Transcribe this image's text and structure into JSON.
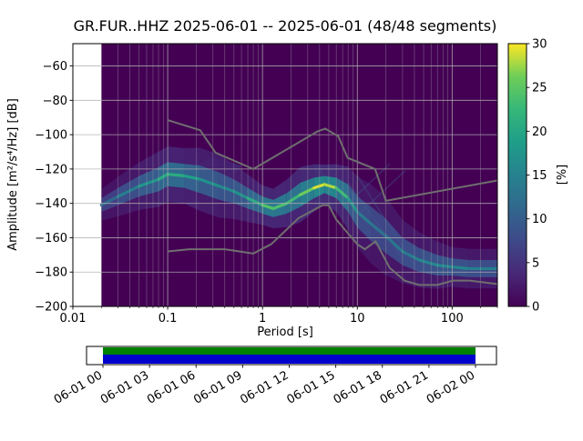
{
  "title": "GR.FUR..HHZ   2025-06-01 -- 2025-06-01  (48/48 segments)",
  "chart_data": {
    "type": "heatmap",
    "title": "GR.FUR..HHZ   2025-06-01 -- 2025-06-01  (48/48 segments)",
    "xlabel": "Period [s]",
    "ylabel": "Amplitude [m²/s⁴/Hz] [dB]",
    "xscale": "log",
    "xlim": [
      0.01,
      300
    ],
    "ylim": [
      -200,
      -47
    ],
    "x_ticks": [
      0.01,
      0.1,
      1,
      10,
      100
    ],
    "x_tick_labels": [
      "0.01",
      "0.1",
      "1",
      "10",
      "100"
    ],
    "y_ticks": [
      -60,
      -80,
      -100,
      -120,
      -140,
      -160,
      -180,
      -200
    ],
    "grid": true,
    "data_period_range": [
      0.02,
      300
    ],
    "colorbar": {
      "label": "[%]",
      "min": 0,
      "max": 30,
      "ticks": [
        0,
        5,
        10,
        15,
        20,
        25,
        30
      ],
      "stops": [
        [
          0,
          "#440154"
        ],
        [
          0.125,
          "#482878"
        ],
        [
          0.25,
          "#3e4989"
        ],
        [
          0.375,
          "#31688e"
        ],
        [
          0.5,
          "#26828e"
        ],
        [
          0.625,
          "#1f9e89"
        ],
        [
          0.75,
          "#35b779"
        ],
        [
          0.875,
          "#6ece58"
        ],
        [
          1,
          "#fde725"
        ]
      ]
    },
    "mode_curve": {
      "period": [
        0.02,
        0.03,
        0.05,
        0.08,
        0.1,
        0.15,
        0.22,
        0.35,
        0.5,
        0.7,
        1.0,
        1.3,
        1.8,
        2.5,
        3.5,
        4.5,
        6.0,
        8.0,
        10,
        14,
        20,
        30,
        45,
        70,
        100,
        150,
        300
      ],
      "db": [
        -141,
        -136,
        -130,
        -126,
        -123,
        -124,
        -126,
        -130,
        -133,
        -137,
        -141,
        -143,
        -140,
        -135,
        -131,
        -129,
        -131,
        -137,
        -145,
        -152,
        -159,
        -168,
        -173,
        -176,
        -177,
        -178,
        -178
      ],
      "percent": [
        10,
        13,
        16,
        19,
        22,
        20,
        18,
        16,
        16,
        18,
        23,
        26,
        22,
        24,
        28,
        30,
        26,
        20,
        15,
        13,
        13,
        14,
        15,
        16,
        16,
        15,
        14
      ],
      "spread_db": [
        4,
        5,
        6,
        7,
        7,
        7,
        8,
        8,
        7,
        6,
        5,
        5,
        6,
        7,
        6,
        5,
        6,
        8,
        9,
        10,
        10,
        8,
        7,
        6,
        5,
        5,
        5
      ]
    },
    "noise_models": {
      "nhnm": [
        [
          0.1,
          -91.5
        ],
        [
          0.22,
          -97.4
        ],
        [
          0.32,
          -110.5
        ],
        [
          0.8,
          -120.0
        ],
        [
          3.8,
          -98.1
        ],
        [
          4.6,
          -96.5
        ],
        [
          6.3,
          -101.0
        ],
        [
          7.9,
          -113.5
        ],
        [
          15.4,
          -120.0
        ],
        [
          20.0,
          -138.5
        ],
        [
          300,
          -126.7
        ]
      ],
      "nlnm": [
        [
          0.1,
          -168.0
        ],
        [
          0.17,
          -166.7
        ],
        [
          0.4,
          -166.7
        ],
        [
          0.8,
          -169.2
        ],
        [
          1.24,
          -163.7
        ],
        [
          2.4,
          -148.6
        ],
        [
          4.3,
          -141.1
        ],
        [
          5.0,
          -141.1
        ],
        [
          6.0,
          -149.4
        ],
        [
          10.0,
          -163.8
        ],
        [
          12.0,
          -166.7
        ],
        [
          15.6,
          -162.1
        ],
        [
          21.9,
          -177.5
        ],
        [
          31.6,
          -185.0
        ],
        [
          45.0,
          -187.5
        ],
        [
          70.0,
          -187.5
        ],
        [
          101.0,
          -185.0
        ],
        [
          154.0,
          -185.0
        ],
        [
          300,
          -187.0
        ]
      ]
    },
    "streaks": [
      [
        8,
        -128,
        30,
        -172
      ],
      [
        10,
        -124,
        40,
        -176
      ],
      [
        7,
        -143,
        22,
        -117
      ],
      [
        10,
        -147,
        32,
        -121
      ]
    ],
    "wisps": [
      [
        [
          0.15,
          -121
        ],
        [
          0.3,
          -113
        ],
        [
          0.6,
          -118
        ],
        [
          0.45,
          -127
        ],
        [
          0.2,
          -128
        ]
      ]
    ]
  },
  "timeline": {
    "ticks": [
      "06-01 00",
      "06-01 03",
      "06-01 06",
      "06-01 09",
      "06-01 12",
      "06-01 15",
      "06-01 18",
      "06-01 21",
      "06-02 00"
    ],
    "colors": {
      "top": "#008000",
      "bottom": "#0000cc"
    }
  }
}
